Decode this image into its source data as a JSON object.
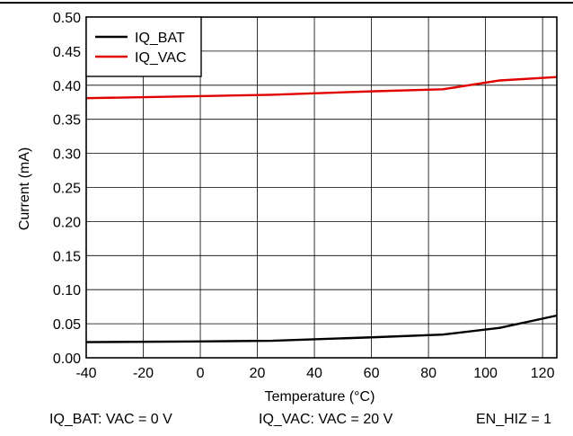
{
  "chart_data": {
    "type": "line",
    "xlabel": "Temperature (°C)",
    "ylabel": "Current (mA)",
    "xlim": [
      -40,
      125
    ],
    "ylim": [
      0,
      0.5
    ],
    "x_ticks": [
      -40,
      -20,
      0,
      20,
      40,
      60,
      80,
      100,
      120
    ],
    "y_ticks": [
      0.0,
      0.05,
      0.1,
      0.15,
      0.2,
      0.25,
      0.3,
      0.35,
      0.4,
      0.45,
      0.5
    ],
    "grid": true,
    "legend_position": "top-left",
    "series": [
      {
        "name": "IQ_BAT",
        "color": "#000000",
        "x": [
          -40,
          0,
          25,
          60,
          85,
          105,
          125
        ],
        "y": [
          0.023,
          0.024,
          0.025,
          0.03,
          0.034,
          0.044,
          0.062
        ]
      },
      {
        "name": "IQ_VAC",
        "color": "#e00000",
        "x": [
          -40,
          0,
          25,
          60,
          85,
          105,
          125
        ],
        "y": [
          0.381,
          0.384,
          0.386,
          0.391,
          0.394,
          0.407,
          0.412
        ]
      }
    ]
  },
  "notes": [
    "IQ_BAT: VAC = 0 V",
    "IQ_VAC: VAC = 20 V",
    "EN_HIZ = 1"
  ]
}
